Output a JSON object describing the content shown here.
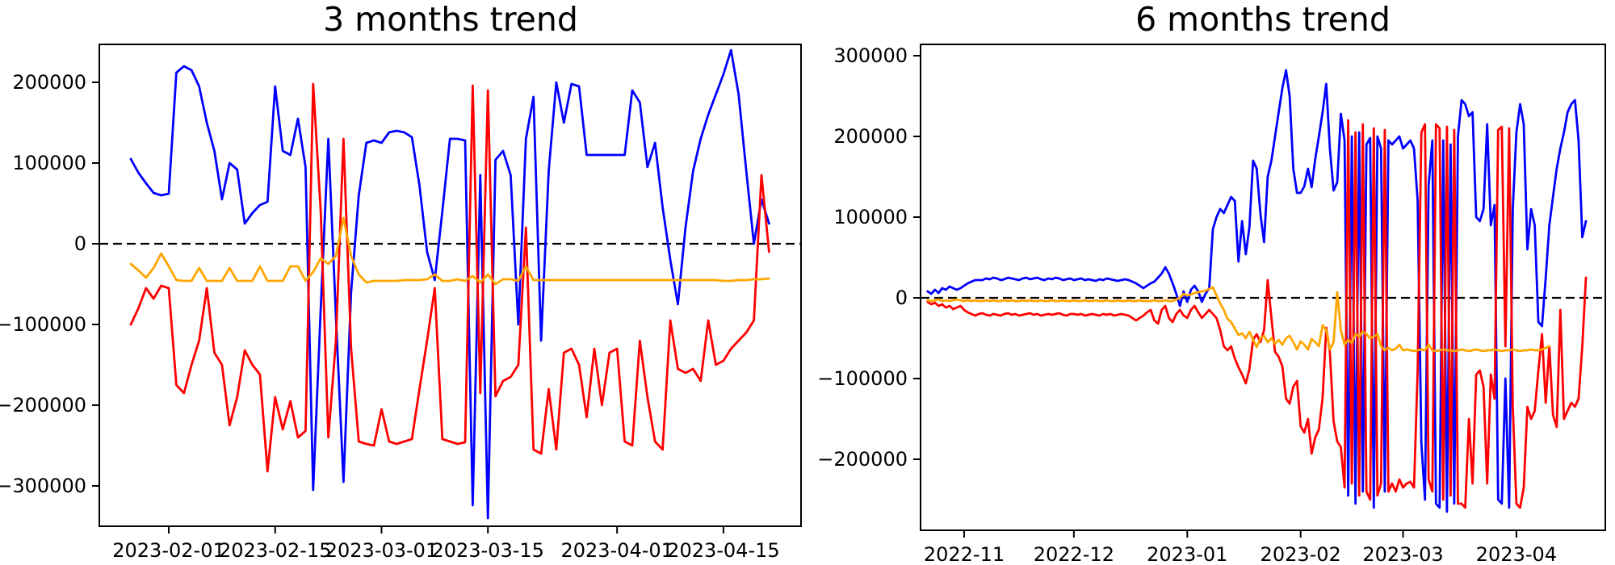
{
  "figure_title": "",
  "chart_data": [
    {
      "type": "line",
      "title": "3 months trend",
      "xlabel": "",
      "ylabel": "",
      "grid": false,
      "legend": "none",
      "start_date": "2023-01-27",
      "frequency": "daily",
      "x_tick_labels": [
        "2023-02-01",
        "2023-02-15",
        "2023-03-01",
        "2023-03-15",
        "2023-04-01",
        "2023-04-15"
      ],
      "x_ticks_day": [
        5,
        19,
        33,
        47,
        64,
        78
      ],
      "xlim_days": [
        -4.14,
        88.21
      ],
      "y_ticks": [
        200000,
        100000,
        0,
        -100000,
        -200000,
        -300000
      ],
      "y_tick_labels": [
        "200000",
        "100000",
        "0",
        "−100000",
        "−200000",
        "−300000"
      ],
      "ylim": [
        -350000,
        247000
      ],
      "zero_line": true,
      "zero_line_color": "#000000",
      "series": [
        {
          "name": "blue",
          "color": "#0000ff",
          "values": [
            105000,
            88000,
            75000,
            63000,
            60000,
            62000,
            212000,
            220000,
            215000,
            195000,
            150000,
            115000,
            55000,
            100000,
            92000,
            25000,
            38000,
            48000,
            52000,
            195000,
            115000,
            110000,
            155000,
            95000,
            -305000,
            -80000,
            130000,
            -90000,
            -295000,
            -60000,
            60000,
            125000,
            128000,
            125000,
            138000,
            140000,
            138000,
            132000,
            72000,
            -10000,
            -45000,
            40000,
            130000,
            130000,
            128000,
            -324000,
            85000,
            -340000,
            104000,
            115000,
            85000,
            -100000,
            130000,
            182000,
            -120000,
            90000,
            200000,
            150000,
            198000,
            195000,
            110000,
            110000,
            110000,
            110000,
            110000,
            110000,
            190000,
            175000,
            95000,
            125000,
            45000,
            -20000,
            -75000,
            20000,
            90000,
            130000,
            160000,
            185000,
            210000,
            240000,
            185000,
            90000,
            0,
            55000,
            25000
          ]
        },
        {
          "name": "red",
          "color": "#ff0000",
          "values": [
            -100000,
            -80000,
            -55000,
            -68000,
            -52000,
            -55000,
            -175000,
            -185000,
            -150000,
            -120000,
            -55000,
            -135000,
            -150000,
            -225000,
            -190000,
            -132000,
            -150000,
            -162000,
            -282000,
            -190000,
            -230000,
            -195000,
            -240000,
            -232000,
            198000,
            40000,
            -240000,
            -120000,
            130000,
            -130000,
            -245000,
            -248000,
            -250000,
            -205000,
            -245000,
            -248000,
            -245000,
            -242000,
            -180000,
            -120000,
            -55000,
            -242000,
            -245000,
            -248000,
            -246000,
            196000,
            -185000,
            190000,
            -189000,
            -170000,
            -165000,
            -150000,
            20000,
            -255000,
            -260000,
            -180000,
            -255000,
            -135000,
            -130000,
            -150000,
            -215000,
            -130000,
            -200000,
            -135000,
            -130000,
            -245000,
            -250000,
            -120000,
            -190000,
            -245000,
            -255000,
            -95000,
            -155000,
            -160000,
            -155000,
            -170000,
            -95000,
            -150000,
            -145000,
            -130000,
            -120000,
            -110000,
            -95000,
            85000,
            -10000
          ]
        },
        {
          "name": "orange",
          "color": "#ffa500",
          "values": [
            -25000,
            -33000,
            -42000,
            -30000,
            -12000,
            -28000,
            -45000,
            -46000,
            -46000,
            -30000,
            -46000,
            -46000,
            -46000,
            -30000,
            -46000,
            -46000,
            -46000,
            -28000,
            -46000,
            -46000,
            -46000,
            -28000,
            -28000,
            -46000,
            -35000,
            -18000,
            -25000,
            -15000,
            32000,
            -15000,
            -38000,
            -48000,
            -46000,
            -46000,
            -46000,
            -46000,
            -45000,
            -45000,
            -45000,
            -44000,
            -38000,
            -46000,
            -46000,
            -44000,
            -46000,
            -40000,
            -48000,
            -38000,
            -50000,
            -44000,
            -44000,
            -46000,
            -28000,
            -45000,
            -45000,
            -45000,
            -45000,
            -45000,
            -45000,
            -45000,
            -45000,
            -45000,
            -45000,
            -45000,
            -45000,
            -45000,
            -45000,
            -45000,
            -45000,
            -45000,
            -45000,
            -45000,
            -45000,
            -45000,
            -45000,
            -45000,
            -45000,
            -45000,
            -46000,
            -46000,
            -45000,
            -45000,
            -44000,
            -44000,
            -43000
          ]
        }
      ]
    },
    {
      "type": "line",
      "title": "6 months trend",
      "xlabel": "",
      "ylabel": "",
      "grid": false,
      "legend": "none",
      "start_date": "2022-10-22",
      "frequency": "daily",
      "x_tick_labels": [
        "2022-11",
        "2022-12",
        "2023-01",
        "2023-02",
        "2023-03",
        "2023-04"
      ],
      "x_ticks_day": [
        10,
        40,
        71,
        102,
        130,
        161
      ],
      "xlim_days": [
        -1.92,
        185.3
      ],
      "y_ticks": [
        300000,
        200000,
        100000,
        0,
        -100000,
        -200000
      ],
      "y_tick_labels": [
        "300000",
        "200000",
        "100000",
        "0",
        "−100000",
        "−200000"
      ],
      "ylim": [
        -288000,
        314000
      ],
      "zero_line": true,
      "zero_line_color": "#000000",
      "series": [
        {
          "name": "blue",
          "color": "#0000ff",
          "values": [
            8000,
            5000,
            10000,
            6000,
            12000,
            10000,
            14000,
            12000,
            10000,
            12000,
            15000,
            18000,
            20000,
            22000,
            22000,
            22000,
            24000,
            23000,
            25000,
            24000,
            22000,
            23000,
            25000,
            24000,
            23000,
            22000,
            24000,
            25000,
            23000,
            24000,
            25000,
            23000,
            22000,
            24000,
            23000,
            25000,
            24000,
            22000,
            23000,
            24000,
            22000,
            23000,
            24000,
            22000,
            23000,
            22000,
            21000,
            23000,
            22000,
            24000,
            23000,
            22000,
            21000,
            22000,
            23000,
            22000,
            20000,
            18000,
            15000,
            12000,
            15000,
            18000,
            20000,
            25000,
            30000,
            38000,
            30000,
            18000,
            5000,
            -10000,
            8000,
            -5000,
            10000,
            15000,
            8000,
            -5000,
            5000,
            12000,
            85000,
            100000,
            110000,
            105000,
            115000,
            125000,
            120000,
            45000,
            95000,
            54000,
            88000,
            170000,
            160000,
            104000,
            69000,
            150000,
            170000,
            200000,
            230000,
            260000,
            282000,
            250000,
            160000,
            130000,
            130000,
            138000,
            160000,
            137000,
            172000,
            200000,
            230000,
            265000,
            185000,
            133000,
            143000,
            228000,
            195000,
            -245000,
            200000,
            -255000,
            205000,
            -240000,
            190000,
            198000,
            -260000,
            200000,
            185000,
            -240000,
            195000,
            190000,
            195000,
            200000,
            185000,
            190000,
            195000,
            185000,
            120000,
            -180000,
            -250000,
            140000,
            195000,
            -255000,
            -260000,
            195000,
            -265000,
            190000,
            -255000,
            200000,
            245000,
            240000,
            225000,
            230000,
            100000,
            95000,
            110000,
            215000,
            90000,
            115000,
            -250000,
            -255000,
            -100000,
            -260000,
            110000,
            205000,
            240000,
            215000,
            60000,
            110000,
            90000,
            -30000,
            -35000,
            25000,
            90000,
            125000,
            160000,
            185000,
            205000,
            230000,
            240000,
            245000,
            195000,
            75000,
            95000
          ]
        },
        {
          "name": "red",
          "color": "#ff0000",
          "values": [
            -5000,
            -8000,
            -6000,
            -10000,
            -8000,
            -12000,
            -10000,
            -14000,
            -12000,
            -10000,
            -15000,
            -18000,
            -20000,
            -22000,
            -20000,
            -19000,
            -21000,
            -22000,
            -20000,
            -21000,
            -22000,
            -20000,
            -19000,
            -21000,
            -20000,
            -22000,
            -21000,
            -20000,
            -19000,
            -21000,
            -20000,
            -22000,
            -21000,
            -20000,
            -21000,
            -20000,
            -19000,
            -21000,
            -22000,
            -20000,
            -20000,
            -21000,
            -20000,
            -22000,
            -21000,
            -20000,
            -21000,
            -22000,
            -20000,
            -21000,
            -20000,
            -22000,
            -21000,
            -20000,
            -21000,
            -22000,
            -25000,
            -28000,
            -25000,
            -22000,
            -18000,
            -15000,
            -28000,
            -32000,
            -15000,
            -10000,
            -25000,
            -30000,
            -20000,
            -15000,
            -22000,
            -25000,
            -15000,
            -10000,
            -18000,
            -25000,
            -20000,
            -15000,
            -20000,
            -25000,
            -40000,
            -60000,
            -65000,
            -60000,
            -75000,
            -86000,
            -95000,
            -106000,
            -88000,
            -52000,
            -45000,
            -55000,
            -40000,
            22000,
            -25000,
            -67000,
            -73000,
            -85000,
            -125000,
            -131000,
            -110000,
            -103000,
            -159000,
            -167000,
            -150000,
            -193000,
            -173000,
            -163000,
            -124000,
            -37000,
            -67000,
            -153000,
            -178000,
            -185000,
            -235000,
            220000,
            -230000,
            205000,
            -245000,
            215000,
            -240000,
            -250000,
            210000,
            -245000,
            -230000,
            208000,
            -240000,
            -230000,
            -240000,
            -225000,
            -235000,
            -230000,
            -228000,
            -235000,
            -90000,
            205000,
            215000,
            -225000,
            -240000,
            215000,
            210000,
            -250000,
            212000,
            -245000,
            208000,
            -255000,
            -255000,
            -260000,
            -150000,
            -230000,
            -95000,
            -90000,
            -110000,
            -230000,
            -95000,
            -125000,
            208000,
            212000,
            -60000,
            210000,
            -135000,
            -255000,
            -260000,
            -235000,
            -135000,
            -150000,
            -140000,
            -90000,
            -45000,
            -130000,
            -60000,
            -145000,
            -160000,
            -15000,
            -150000,
            -140000,
            -130000,
            -135000,
            -125000,
            -60000,
            25000
          ]
        },
        {
          "name": "orange",
          "color": "#ffa500",
          "values": [
            -3000,
            -4000,
            -3000,
            -2000,
            -4000,
            -3000,
            -4000,
            -3000,
            -2000,
            -3000,
            -4000,
            -3000,
            -4000,
            -3000,
            -4000,
            -4000,
            -3000,
            -4000,
            -3000,
            -4000,
            -4000,
            -3000,
            -4000,
            -3000,
            -4000,
            -4000,
            -3000,
            -4000,
            -3000,
            -4000,
            -4000,
            -3000,
            -4000,
            -4000,
            -3000,
            -4000,
            -4000,
            -3000,
            -4000,
            -4000,
            -3000,
            -4000,
            -4000,
            -3000,
            -4000,
            -4000,
            -3000,
            -4000,
            -4000,
            -3000,
            -4000,
            -4000,
            -3000,
            -4000,
            -4000,
            -3000,
            -4000,
            -4000,
            -3000,
            -4000,
            -4000,
            -4000,
            -3000,
            -4000,
            -4000,
            -3000,
            -4000,
            -4000,
            -2000,
            0,
            5000,
            3000,
            4000,
            6000,
            7000,
            8000,
            9000,
            11000,
            13000,
            3000,
            -7000,
            -15000,
            -26000,
            -30000,
            -38000,
            -46000,
            -44000,
            -50000,
            -42000,
            -52000,
            -61000,
            -50000,
            -47000,
            -55000,
            -50000,
            -57000,
            -52000,
            -58000,
            -50000,
            -47000,
            -55000,
            -64000,
            -54000,
            -58000,
            -64000,
            -51000,
            -55000,
            -60000,
            -34000,
            -40000,
            -64000,
            -55000,
            7000,
            -40000,
            -58000,
            -52000,
            -56000,
            -45000,
            -48000,
            -42000,
            -45000,
            -50000,
            -48000,
            -45000,
            -60000,
            -65000,
            -62000,
            -65000,
            -63000,
            -58000,
            -65000,
            -64000,
            -65000,
            -66000,
            -65000,
            -64000,
            -65000,
            -58000,
            -65000,
            -66000,
            -65000,
            -64000,
            -65000,
            -65000,
            -66000,
            -65000,
            -64000,
            -65000,
            -66000,
            -65000,
            -64000,
            -65000,
            -66000,
            -65000,
            -65000,
            -64000,
            -65000,
            -66000,
            -65000,
            -65000,
            -64000,
            -65000,
            -66000,
            -65000,
            -65000,
            -64000,
            -65000,
            -65000,
            -64000,
            -62000,
            -60000
          ]
        }
      ]
    }
  ]
}
